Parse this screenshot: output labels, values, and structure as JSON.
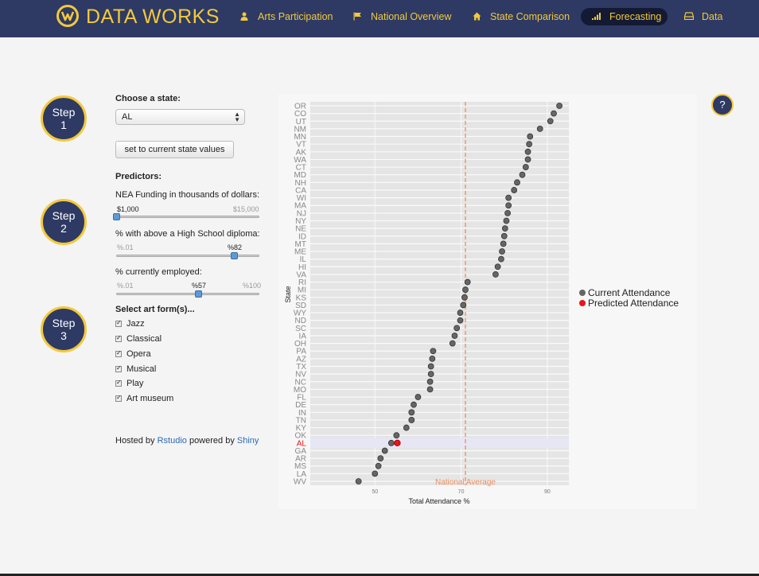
{
  "brand": "DATA WORKS",
  "nav": [
    {
      "label": "Arts Participation",
      "icon": "person-icon"
    },
    {
      "label": "National Overview",
      "icon": "flag-icon"
    },
    {
      "label": "State Comparison",
      "icon": "home-icon"
    },
    {
      "label": "Forecasting",
      "icon": "signal-bars-icon",
      "active": true
    },
    {
      "label": "Data",
      "icon": "tray-icon"
    }
  ],
  "steps": [
    {
      "word": "Step",
      "num": "1"
    },
    {
      "word": "Step",
      "num": "2"
    },
    {
      "word": "Step",
      "num": "3"
    }
  ],
  "help": "?",
  "state": {
    "label": "Choose a state:",
    "value": "AL"
  },
  "reset_button": "set to current state values",
  "predictors_label": "Predictors:",
  "sliders": [
    {
      "label": "NEA Funding in thousands of dollars:",
      "min_label": "$1,000",
      "max_label": "$15,000",
      "value_label": "$1,000",
      "value_fraction": 0.0
    },
    {
      "label": "% with above a High School diploma:",
      "min_label": "%.01",
      "max_label": "",
      "value_label": "%82",
      "value_fraction": 0.82
    },
    {
      "label": "% currently employed:",
      "min_label": "%.01",
      "max_label": "%100",
      "value_label": "%57",
      "value_fraction": 0.57
    }
  ],
  "art_forms": {
    "label": "Select art form(s)...",
    "items": [
      "Jazz",
      "Classical",
      "Opera",
      "Musical",
      "Play",
      "Art museum"
    ]
  },
  "footer": {
    "prefix": "Hosted by ",
    "link1": "Rstudio",
    "middle": " powered by ",
    "link2": "Shiny"
  },
  "colors": {
    "nav_bg": "#2e3a64",
    "accent": "#f3c93a",
    "current": "#666666",
    "predicted": "#e8141b",
    "national_line": "#f08c5a"
  },
  "chart_data": {
    "type": "scatter",
    "xlabel": "Total Attendance %",
    "ylabel": "State",
    "xlim": [
      35,
      95
    ],
    "xticks": [
      50,
      70,
      90
    ],
    "national_average": {
      "label": "National Average",
      "value": 71
    },
    "legend": [
      "Current Attendance",
      "Predicted Attendance"
    ],
    "states": [
      "OR",
      "CO",
      "UT",
      "NM",
      "MN",
      "VT",
      "AK",
      "WA",
      "CT",
      "MD",
      "NH",
      "CA",
      "WI",
      "MA",
      "NJ",
      "NY",
      "NE",
      "ID",
      "MT",
      "ME",
      "IL",
      "HI",
      "VA",
      "RI",
      "MI",
      "KS",
      "SD",
      "WY",
      "ND",
      "SC",
      "IA",
      "OH",
      "PA",
      "AZ",
      "TX",
      "NV",
      "NC",
      "MO",
      "FL",
      "DE",
      "IN",
      "TN",
      "KY",
      "OK",
      "AL",
      "GA",
      "AR",
      "MS",
      "LA",
      "WV"
    ],
    "current": [
      92.8,
      91.5,
      90.7,
      88.3,
      86.0,
      85.8,
      85.5,
      85.5,
      85.0,
      84.2,
      83.0,
      82.3,
      81.0,
      81.0,
      80.8,
      80.5,
      80.2,
      80.0,
      79.8,
      79.5,
      79.3,
      78.5,
      78.0,
      71.5,
      71.0,
      70.8,
      70.5,
      69.8,
      69.8,
      69.0,
      68.5,
      68.0,
      63.5,
      63.3,
      63.0,
      63.0,
      62.8,
      62.8,
      60.0,
      59.0,
      58.5,
      58.5,
      57.3,
      55.0,
      53.8,
      52.3,
      51.3,
      50.8,
      50.0,
      46.2
    ],
    "predicted": [
      {
        "state": "AL",
        "x": 55.2
      }
    ]
  }
}
